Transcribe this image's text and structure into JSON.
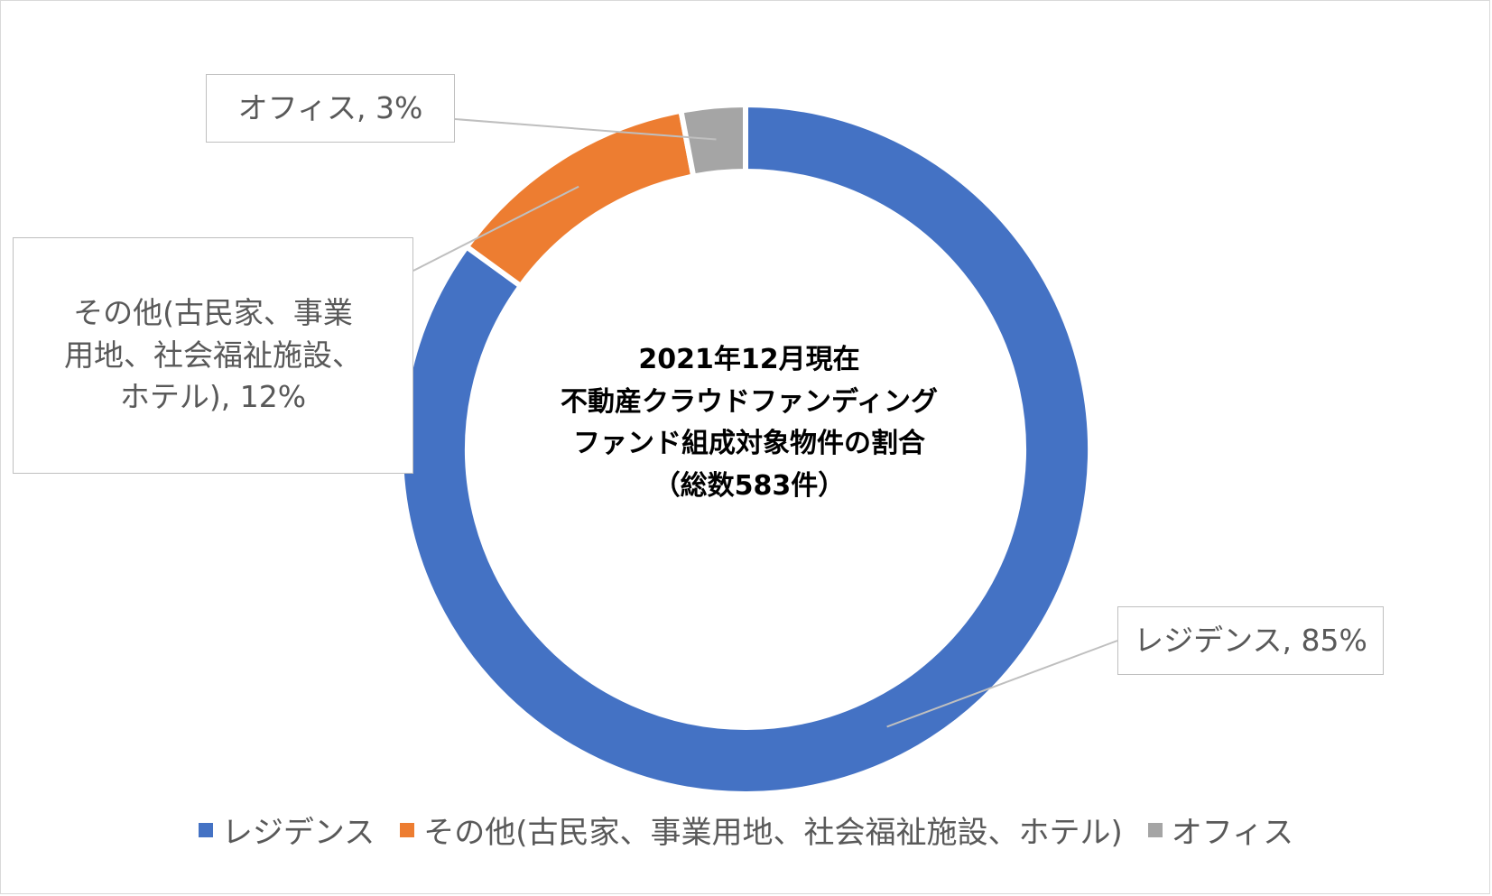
{
  "chart_data": {
    "type": "pie",
    "style": "doughnut",
    "title": "2021年12月現在\n不動産クラウドファンディング\nファンド組成対象物件の割合\n（総数583件）",
    "series": [
      {
        "name": "レジデンス",
        "value": 85,
        "color": "#4472c4",
        "data_label": "レジデンス, 85%"
      },
      {
        "name": "その他(古民家、事業用地、社会福祉施設、ホテル)",
        "value": 12,
        "color": "#ed7d31",
        "data_label": "その他(古民家、事業\n用地、社会福祉施設、\nホテル), 12%"
      },
      {
        "name": "オフィス",
        "value": 3,
        "color": "#a5a5a5",
        "data_label": "オフィス, 3%"
      }
    ],
    "legend_position": "bottom"
  }
}
